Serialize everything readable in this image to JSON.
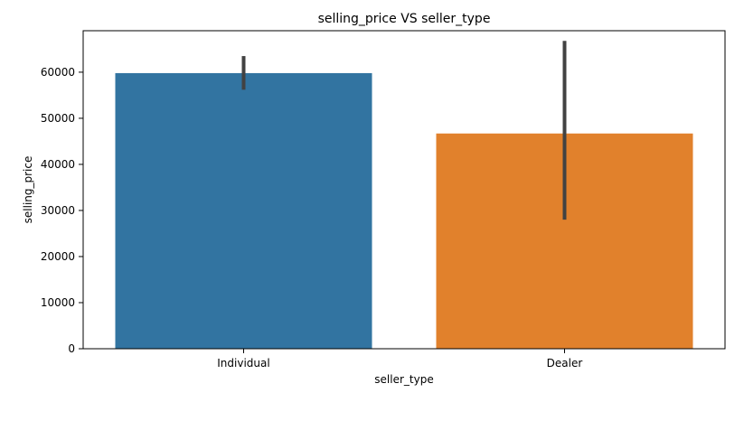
{
  "chart_data": {
    "type": "bar",
    "title": "selling_price VS seller_type",
    "xlabel": "seller_type",
    "ylabel": "selling_price",
    "categories": [
      "Individual",
      "Dealer"
    ],
    "values": [
      59800,
      46700
    ],
    "error_bars": [
      {
        "low": 56200,
        "high": 63500
      },
      {
        "low": 28000,
        "high": 66800
      }
    ],
    "colors": [
      "#3274a1",
      "#e1812c"
    ],
    "ylim": [
      0,
      69000
    ],
    "yticks": [
      0,
      10000,
      20000,
      30000,
      40000,
      50000,
      60000
    ],
    "grid": false,
    "legend": "none"
  }
}
